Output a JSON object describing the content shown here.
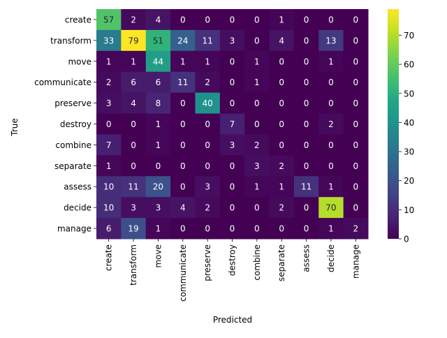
{
  "chart_data": {
    "type": "heatmap",
    "xlabel": "Predicted",
    "ylabel": "True",
    "x_categories": [
      "create",
      "transform",
      "move",
      "communicate",
      "preserve",
      "destroy",
      "combine",
      "separate",
      "assess",
      "decide",
      "manage"
    ],
    "y_categories": [
      "create",
      "transform",
      "move",
      "communicate",
      "preserve",
      "destroy",
      "combine",
      "separate",
      "assess",
      "decide",
      "manage"
    ],
    "values": [
      [
        57,
        2,
        4,
        0,
        0,
        0,
        0,
        1,
        0,
        0,
        0
      ],
      [
        33,
        79,
        51,
        24,
        11,
        3,
        0,
        4,
        0,
        13,
        0
      ],
      [
        1,
        1,
        44,
        1,
        1,
        0,
        1,
        0,
        0,
        1,
        0
      ],
      [
        2,
        6,
        6,
        11,
        2,
        0,
        1,
        0,
        0,
        0,
        0
      ],
      [
        3,
        4,
        8,
        0,
        40,
        0,
        0,
        0,
        0,
        0,
        0
      ],
      [
        0,
        0,
        1,
        0,
        0,
        7,
        0,
        0,
        0,
        2,
        0
      ],
      [
        7,
        0,
        1,
        0,
        0,
        3,
        2,
        0,
        0,
        0,
        0
      ],
      [
        1,
        0,
        0,
        0,
        0,
        0,
        3,
        2,
        0,
        0,
        0
      ],
      [
        10,
        11,
        20,
        0,
        3,
        0,
        1,
        1,
        11,
        1,
        0
      ],
      [
        10,
        3,
        3,
        4,
        2,
        0,
        0,
        2,
        0,
        70,
        0
      ],
      [
        6,
        19,
        1,
        0,
        0,
        0,
        0,
        0,
        0,
        1,
        2
      ]
    ],
    "colormap": "viridis",
    "vmin": 0,
    "vmax": 79,
    "colorbar_ticks": [
      0,
      10,
      20,
      30,
      40,
      50,
      60,
      70
    ]
  }
}
